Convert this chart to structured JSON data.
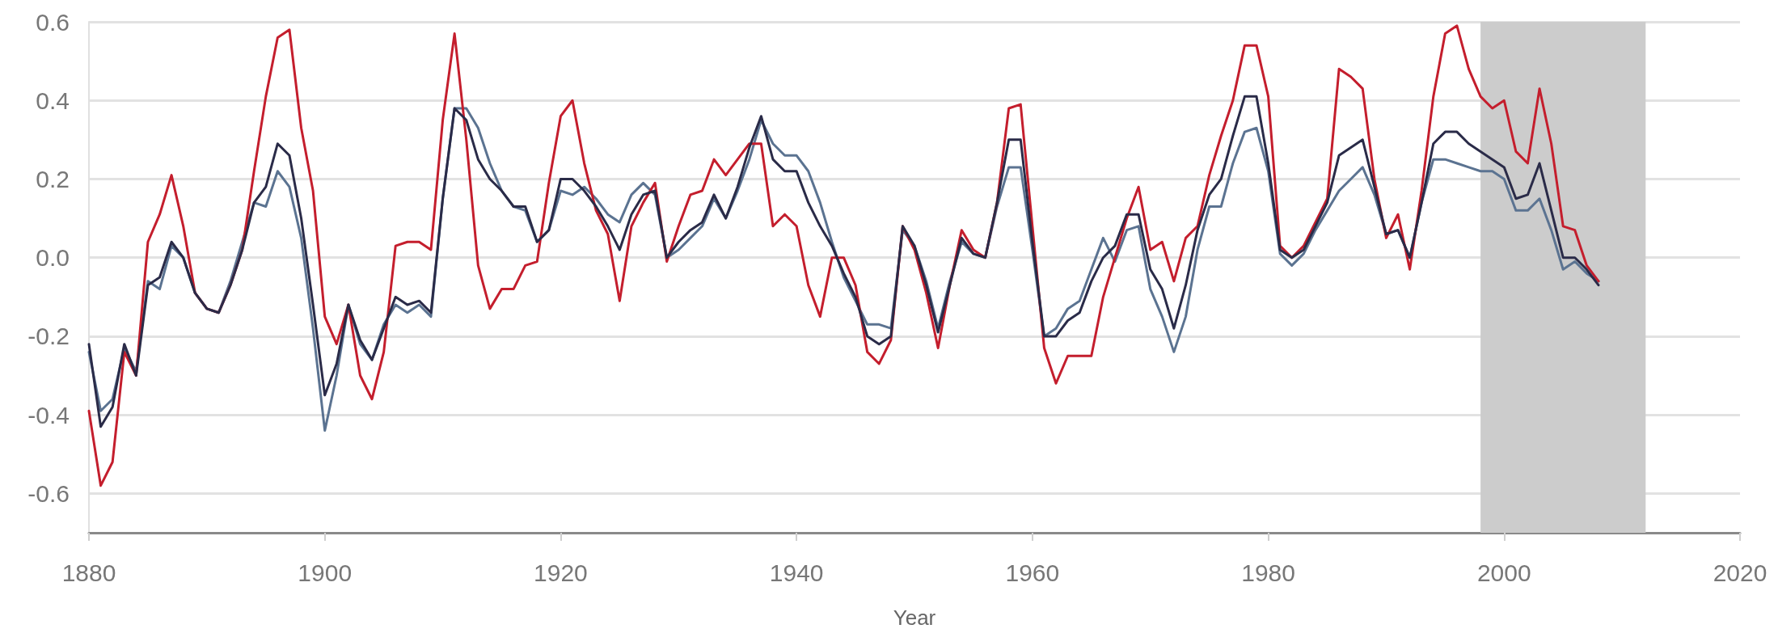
{
  "chart_data": {
    "type": "line",
    "xlabel": "Year",
    "x": [
      1880,
      1881,
      1882,
      1883,
      1884,
      1885,
      1886,
      1887,
      1888,
      1889,
      1890,
      1891,
      1892,
      1893,
      1894,
      1895,
      1896,
      1897,
      1898,
      1899,
      1900,
      1901,
      1902,
      1903,
      1904,
      1905,
      1906,
      1907,
      1908,
      1909,
      1910,
      1911,
      1912,
      1913,
      1914,
      1915,
      1916,
      1917,
      1918,
      1919,
      1920,
      1921,
      1922,
      1923,
      1924,
      1925,
      1926,
      1927,
      1928,
      1929,
      1930,
      1931,
      1932,
      1933,
      1934,
      1935,
      1936,
      1937,
      1938,
      1939,
      1940,
      1941,
      1942,
      1943,
      1944,
      1945,
      1946,
      1947,
      1948,
      1949,
      1950,
      1951,
      1952,
      1953,
      1954,
      1955,
      1956,
      1957,
      1958,
      1959,
      1960,
      1961,
      1962,
      1963,
      1964,
      1965,
      1966,
      1967,
      1968,
      1969,
      1970,
      1971,
      1972,
      1973,
      1974,
      1975,
      1976,
      1977,
      1978,
      1979,
      1980,
      1981,
      1982,
      1983,
      1984,
      1985,
      1986,
      1987,
      1988,
      1989,
      1990,
      1991,
      1992,
      1993,
      1994,
      1995,
      1996,
      1997,
      1998,
      1999,
      2000,
      2001,
      2002,
      2003,
      2004,
      2005,
      2006,
      2007,
      2008
    ],
    "series": [
      {
        "color": "#5b7391",
        "values": [
          -0.24,
          -0.39,
          -0.36,
          -0.23,
          -0.29,
          -0.06,
          -0.08,
          0.03,
          0.0,
          -0.09,
          -0.13,
          -0.14,
          -0.06,
          0.04,
          0.14,
          0.13,
          0.22,
          0.18,
          0.05,
          -0.18,
          -0.44,
          -0.3,
          -0.12,
          -0.22,
          -0.26,
          -0.17,
          -0.12,
          -0.14,
          -0.12,
          -0.15,
          0.15,
          0.38,
          0.38,
          0.33,
          0.24,
          0.17,
          0.13,
          0.12,
          0.04,
          0.07,
          0.17,
          0.16,
          0.18,
          0.15,
          0.11,
          0.09,
          0.16,
          0.19,
          0.16,
          0.0,
          0.02,
          0.05,
          0.08,
          0.15,
          0.1,
          0.17,
          0.25,
          0.35,
          0.29,
          0.26,
          0.26,
          0.22,
          0.14,
          0.04,
          -0.05,
          -0.11,
          -0.17,
          -0.17,
          -0.18,
          0.07,
          0.03,
          -0.06,
          -0.18,
          -0.06,
          0.04,
          0.01,
          0.0,
          0.13,
          0.23,
          0.23,
          0.02,
          -0.2,
          -0.18,
          -0.13,
          -0.11,
          -0.03,
          0.05,
          -0.01,
          0.07,
          0.08,
          -0.08,
          -0.15,
          -0.24,
          -0.15,
          0.02,
          0.13,
          0.13,
          0.24,
          0.32,
          0.33,
          0.22,
          0.01,
          -0.02,
          0.01,
          0.07,
          0.12,
          0.17,
          0.2,
          0.23,
          0.16,
          0.06,
          0.07,
          0.0,
          0.14,
          0.25,
          0.25,
          0.24,
          0.23,
          0.22,
          0.22,
          0.2,
          0.12,
          0.12,
          0.15,
          0.07,
          -0.03,
          -0.01,
          -0.04,
          -0.06
        ]
      },
      {
        "color": "#c41e2d",
        "values": [
          -0.39,
          -0.58,
          -0.52,
          -0.24,
          -0.3,
          0.04,
          0.11,
          0.21,
          0.08,
          -0.09,
          -0.13,
          -0.14,
          -0.07,
          0.02,
          0.22,
          0.41,
          0.56,
          0.58,
          0.33,
          0.17,
          -0.15,
          -0.22,
          -0.12,
          -0.3,
          -0.36,
          -0.24,
          0.03,
          0.04,
          0.04,
          0.02,
          0.35,
          0.57,
          0.3,
          -0.02,
          -0.13,
          -0.08,
          -0.08,
          -0.02,
          -0.01,
          0.19,
          0.36,
          0.4,
          0.24,
          0.12,
          0.06,
          -0.11,
          0.08,
          0.14,
          0.19,
          -0.01,
          0.08,
          0.16,
          0.17,
          0.25,
          0.21,
          0.25,
          0.29,
          0.29,
          0.08,
          0.11,
          0.08,
          -0.07,
          -0.15,
          0.0,
          0.0,
          -0.07,
          -0.24,
          -0.27,
          -0.21,
          0.08,
          0.02,
          -0.09,
          -0.23,
          -0.07,
          0.07,
          0.02,
          0.0,
          0.14,
          0.38,
          0.39,
          0.08,
          -0.23,
          -0.32,
          -0.25,
          -0.25,
          -0.25,
          -0.1,
          0.0,
          0.1,
          0.18,
          0.02,
          0.04,
          -0.06,
          0.05,
          0.08,
          0.21,
          0.31,
          0.4,
          0.54,
          0.54,
          0.41,
          0.03,
          0.0,
          0.03,
          0.09,
          0.15,
          0.48,
          0.46,
          0.43,
          0.2,
          0.05,
          0.11,
          -0.03,
          0.17,
          0.41,
          0.57,
          0.59,
          0.48,
          0.41,
          0.38,
          0.4,
          0.27,
          0.24,
          0.43,
          0.29,
          0.08,
          0.07,
          -0.02,
          -0.06
        ]
      },
      {
        "color": "#2a2b48",
        "values": [
          -0.22,
          -0.43,
          -0.38,
          -0.22,
          -0.3,
          -0.07,
          -0.05,
          0.04,
          0.0,
          -0.09,
          -0.13,
          -0.14,
          -0.07,
          0.02,
          0.14,
          0.18,
          0.29,
          0.26,
          0.1,
          -0.12,
          -0.35,
          -0.27,
          -0.12,
          -0.21,
          -0.26,
          -0.18,
          -0.1,
          -0.12,
          -0.11,
          -0.14,
          0.15,
          0.38,
          0.35,
          0.25,
          0.2,
          0.17,
          0.13,
          0.13,
          0.04,
          0.07,
          0.2,
          0.2,
          0.17,
          0.13,
          0.08,
          0.02,
          0.11,
          0.16,
          0.17,
          0.0,
          0.04,
          0.07,
          0.09,
          0.16,
          0.1,
          0.18,
          0.28,
          0.36,
          0.25,
          0.22,
          0.22,
          0.14,
          0.08,
          0.03,
          -0.04,
          -0.1,
          -0.2,
          -0.22,
          -0.2,
          0.08,
          0.03,
          -0.07,
          -0.19,
          -0.07,
          0.05,
          0.01,
          0.0,
          0.14,
          0.3,
          0.3,
          0.04,
          -0.2,
          -0.2,
          -0.16,
          -0.14,
          -0.06,
          0.0,
          0.03,
          0.11,
          0.11,
          -0.03,
          -0.08,
          -0.18,
          -0.07,
          0.07,
          0.16,
          0.2,
          0.31,
          0.41,
          0.41,
          0.24,
          0.02,
          0.0,
          0.02,
          0.08,
          0.14,
          0.26,
          0.28,
          0.3,
          0.18,
          0.06,
          0.07,
          0.0,
          0.14,
          0.29,
          0.32,
          0.32,
          0.29,
          0.27,
          0.25,
          0.23,
          0.15,
          0.16,
          0.24,
          0.12,
          0.0,
          0.0,
          -0.03,
          -0.07
        ]
      }
    ],
    "xlim": [
      1880,
      2020
    ],
    "xticks": [
      1880,
      1900,
      1920,
      1940,
      1960,
      1980,
      2000,
      2020
    ],
    "ylim": [
      -0.7,
      0.6
    ],
    "yticks": [
      -0.6,
      -0.4,
      -0.2,
      {
        "value": 0,
        "label": "0.0"
      },
      0.2,
      0.4,
      0.6
    ],
    "bands": [
      {
        "axis": "x",
        "from": 1998,
        "to": 2012,
        "color": "#cccccc"
      }
    ],
    "grid": "y",
    "line_style": "solid"
  }
}
